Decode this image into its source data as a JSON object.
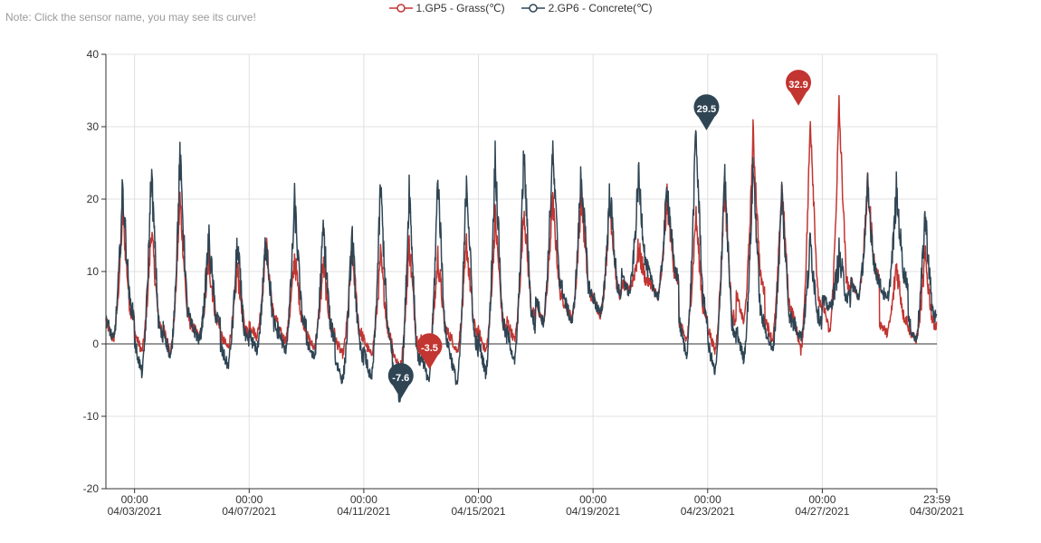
{
  "note": "Note: Click the sensor name, you may see its curve!",
  "chart_data": {
    "type": "line",
    "title": "",
    "xlabel": "",
    "ylabel": "",
    "x_start": "04/02/2021 00:00",
    "x_end": "04/30/2021 23:59",
    "ylim": [
      -20,
      40
    ],
    "yticks": [
      -20,
      -10,
      0,
      10,
      20,
      30,
      40
    ],
    "xticks": [
      {
        "time": "00:00",
        "date": "04/03/2021"
      },
      {
        "time": "00:00",
        "date": "04/07/2021"
      },
      {
        "time": "00:00",
        "date": "04/11/2021"
      },
      {
        "time": "00:00",
        "date": "04/15/2021"
      },
      {
        "time": "00:00",
        "date": "04/19/2021"
      },
      {
        "time": "00:00",
        "date": "04/23/2021"
      },
      {
        "time": "00:00",
        "date": "04/27/2021"
      },
      {
        "time": "23:59",
        "date": "04/30/2021"
      }
    ],
    "grid": true,
    "legend_position": "top-center",
    "series": [
      {
        "name": "1.GP5 - Grass(℃)",
        "color": "#c23531",
        "daily_min": [
          0.5,
          -1.0,
          -1.0,
          1.0,
          -0.5,
          1.0,
          0.5,
          -0.5,
          -1.5,
          -1.5,
          -3.5,
          -1.0,
          -1.0,
          -1.0,
          0.5,
          3.0,
          3.5,
          4.0,
          7.5,
          6.5,
          0.5,
          -1.0,
          3.0,
          0.5,
          -1.0,
          1.5,
          6.5,
          1.5,
          0.5
        ],
        "daily_max": [
          18.0,
          16.0,
          20.0,
          11.5,
          10.5,
          14.0,
          12.0,
          11.0,
          13.0,
          12.0,
          14.0,
          12.0,
          14.0,
          17.5,
          19.0,
          20.0,
          20.5,
          19.5,
          13.0,
          20.0,
          18.0,
          22.0,
          29.0,
          22.0,
          31.5,
          32.9,
          22.0,
          11.0,
          12.0
        ]
      },
      {
        "name": "2.GP6 - Concrete(℃)",
        "color": "#2f4554",
        "daily_min": [
          0.5,
          -4.0,
          -2.0,
          0.5,
          -3.0,
          -1.0,
          -1.0,
          -2.0,
          -5.0,
          -5.0,
          -7.6,
          -5.5,
          -5.5,
          -4.0,
          -2.5,
          3.0,
          3.0,
          4.0,
          7.0,
          6.5,
          -1.5,
          -4.0,
          -2.0,
          -1.0,
          1.0,
          5.0,
          6.5,
          6.0,
          0.5
        ],
        "daily_max": [
          21.5,
          24.0,
          26.0,
          14.5,
          14.0,
          15.0,
          19.5,
          16.0,
          15.0,
          22.0,
          22.0,
          23.5,
          23.5,
          26.0,
          26.5,
          26.5,
          24.0,
          21.0,
          23.0,
          22.0,
          29.5,
          24.0,
          25.0,
          21.0,
          14.0,
          12.0,
          21.0,
          21.0,
          18.0
        ]
      }
    ],
    "markers": [
      {
        "series": 0,
        "label": "32.9",
        "x": "04/26/2021 04:00",
        "y": 32.9,
        "kind": "max"
      },
      {
        "series": 1,
        "label": "29.5",
        "x": "04/22/2021 23:00",
        "y": 29.5,
        "kind": "max"
      },
      {
        "series": 0,
        "label": "-3.5",
        "x": "04/13/2021 07:00",
        "y": -3.5,
        "kind": "min"
      },
      {
        "series": 1,
        "label": "-7.6",
        "x": "04/12/2021 07:00",
        "y": -7.6,
        "kind": "min"
      }
    ]
  }
}
